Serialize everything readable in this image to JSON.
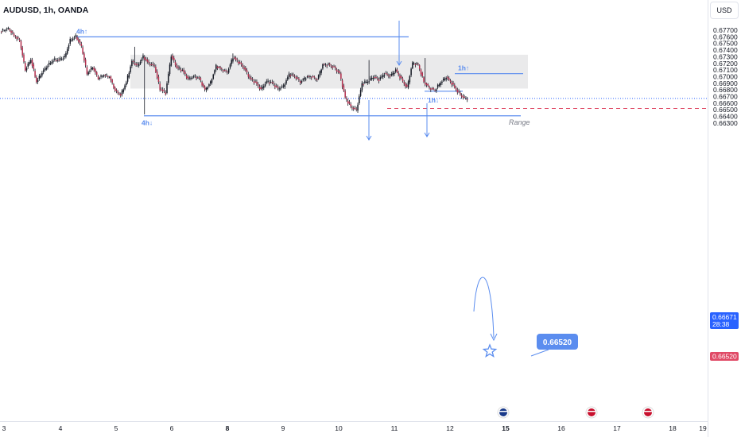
{
  "header": {
    "title": "AUDUSD, 1h, OANDA",
    "currency": "USD"
  },
  "colors": {
    "up": "#131722",
    "down": "#b22d4c",
    "annotation": "#5b8def",
    "range_fill": "#e6e6e8",
    "target_line": "#e04a66",
    "price_line": "#2962ff"
  },
  "chart_data": {
    "type": "candlestick",
    "x_ticks": [
      "3",
      "4",
      "5",
      "6",
      "8",
      "9",
      "10",
      "11",
      "12",
      "15",
      "16",
      "17",
      "18",
      "19"
    ],
    "y_ticks": [
      "0.67700",
      "0.67600",
      "0.67500",
      "0.67400",
      "0.67300",
      "0.67200",
      "0.67100",
      "0.67000",
      "0.66900",
      "0.66800",
      "0.66700",
      "0.66600",
      "0.66500",
      "0.66400",
      "0.66300"
    ],
    "ylim": [
      0.6629,
      0.6779
    ],
    "range_box": {
      "label": "Range",
      "high": 0.6733,
      "low": 0.6682
    },
    "levels": [
      {
        "label": "4h↑",
        "price": 0.676
      },
      {
        "label": "4h↓",
        "price": 0.6641
      },
      {
        "label": "1h↑",
        "price": 0.67045
      },
      {
        "label": "1h↓",
        "price": 0.6678
      }
    ],
    "target": {
      "value": "0.66520",
      "price": 0.6652
    },
    "current_price": {
      "value": "0.66671",
      "countdown": "28:38",
      "price": 0.66671
    },
    "target_marker_label": "0.66520",
    "anchors": [
      [
        0,
        0.6768
      ],
      [
        6,
        0.6772
      ],
      [
        10,
        0.6762
      ],
      [
        14,
        0.6755
      ],
      [
        18,
        0.671
      ],
      [
        22,
        0.6725
      ],
      [
        26,
        0.6692
      ],
      [
        30,
        0.6707
      ],
      [
        34,
        0.6717
      ],
      [
        38,
        0.6724
      ],
      [
        42,
        0.6725
      ],
      [
        46,
        0.673
      ],
      [
        50,
        0.6755
      ],
      [
        54,
        0.676
      ],
      [
        58,
        0.6745
      ],
      [
        62,
        0.6705
      ],
      [
        66,
        0.6715
      ],
      [
        70,
        0.6697
      ],
      [
        74,
        0.6702
      ],
      [
        78,
        0.67
      ],
      [
        82,
        0.668
      ],
      [
        86,
        0.6672
      ],
      [
        90,
        0.6691
      ],
      [
        94,
        0.6723
      ],
      [
        98,
        0.6717
      ],
      [
        102,
        0.673
      ],
      [
        106,
        0.6719
      ],
      [
        110,
        0.6716
      ],
      [
        114,
        0.6682
      ],
      [
        118,
        0.6676
      ],
      [
        122,
        0.6731
      ],
      [
        126,
        0.6713
      ],
      [
        130,
        0.671
      ],
      [
        134,
        0.6697
      ],
      [
        138,
        0.67
      ],
      [
        142,
        0.6697
      ],
      [
        146,
        0.668
      ],
      [
        150,
        0.6692
      ],
      [
        154,
        0.6716
      ],
      [
        158,
        0.671
      ],
      [
        162,
        0.6707
      ],
      [
        166,
        0.673
      ],
      [
        170,
        0.6722
      ],
      [
        174,
        0.6712
      ],
      [
        178,
        0.6697
      ],
      [
        182,
        0.6692
      ],
      [
        186,
        0.6681
      ],
      [
        190,
        0.6692
      ],
      [
        194,
        0.669
      ],
      [
        198,
        0.6682
      ],
      [
        202,
        0.6686
      ],
      [
        206,
        0.6703
      ],
      [
        210,
        0.67
      ],
      [
        214,
        0.6692
      ],
      [
        218,
        0.67
      ],
      [
        222,
        0.67
      ],
      [
        226,
        0.6695
      ],
      [
        230,
        0.6718
      ],
      [
        234,
        0.6719
      ],
      [
        238,
        0.6714
      ],
      [
        242,
        0.6704
      ],
      [
        246,
        0.6668
      ],
      [
        250,
        0.6655
      ],
      [
        254,
        0.665
      ],
      [
        258,
        0.6689
      ],
      [
        262,
        0.6692
      ],
      [
        266,
        0.67
      ],
      [
        270,
        0.6696
      ],
      [
        274,
        0.6704
      ],
      [
        278,
        0.67
      ],
      [
        282,
        0.671
      ],
      [
        286,
        0.6697
      ],
      [
        290,
        0.6683
      ],
      [
        294,
        0.672
      ],
      [
        298,
        0.6718
      ],
      [
        302,
        0.6693
      ],
      [
        306,
        0.6683
      ],
      [
        310,
        0.6679
      ],
      [
        314,
        0.6691
      ],
      [
        318,
        0.67
      ],
      [
        322,
        0.669
      ],
      [
        326,
        0.6677
      ],
      [
        330,
        0.6668
      ],
      [
        333,
        0.66671
      ]
    ]
  }
}
